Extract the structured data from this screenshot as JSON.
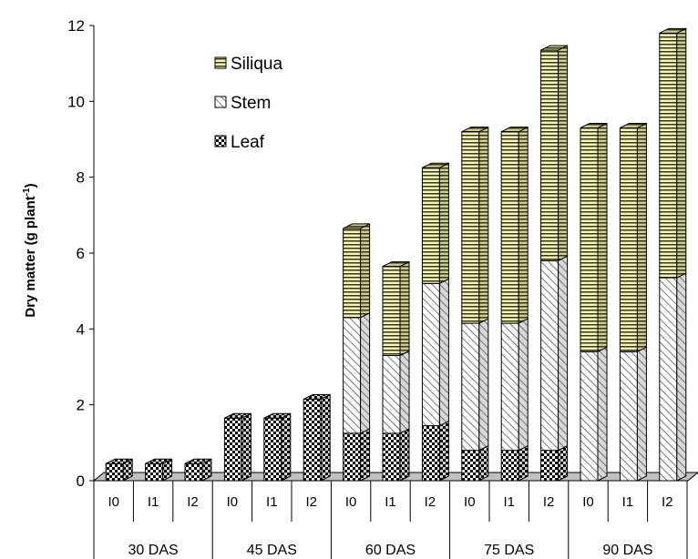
{
  "chart_data": {
    "type": "bar",
    "stacked": true,
    "ylabel_main": "Dry matter (g plant",
    "ylabel_sup": "-1",
    "ylabel_close": ")",
    "xlabel": "",
    "ylim": [
      0,
      12
    ],
    "yticks": [
      0,
      2,
      4,
      6,
      8,
      10,
      12
    ],
    "groups": [
      "30 DAS",
      "45 DAS",
      "60 DAS",
      "75 DAS",
      "90 DAS"
    ],
    "categories": [
      "I0",
      "I1",
      "I2",
      "I0",
      "I1",
      "I2",
      "I0",
      "I1",
      "I2",
      "I0",
      "I1",
      "I2",
      "I0",
      "I1",
      "I2"
    ],
    "series": [
      {
        "name": "Leaf",
        "values": [
          0.45,
          0.45,
          0.45,
          1.65,
          1.65,
          2.15,
          1.25,
          1.25,
          1.45,
          0.8,
          0.8,
          0.8,
          0,
          0,
          0
        ]
      },
      {
        "name": "Stem",
        "values": [
          0,
          0,
          0,
          0,
          0,
          0,
          3.05,
          2.05,
          3.75,
          3.35,
          3.35,
          5.0,
          3.4,
          3.4,
          5.35
        ]
      },
      {
        "name": "Siliqua",
        "values": [
          0,
          0,
          0,
          0,
          0,
          0,
          2.35,
          2.35,
          3.05,
          5.05,
          5.05,
          5.55,
          5.9,
          5.9,
          6.45
        ]
      }
    ],
    "legend_position": "top-left",
    "grid": false,
    "colors": {
      "leaf": "#000000",
      "stem": "#555555",
      "siliqua_fill": "#f2f2c4",
      "siliqua_line": "#3a3a00"
    }
  }
}
